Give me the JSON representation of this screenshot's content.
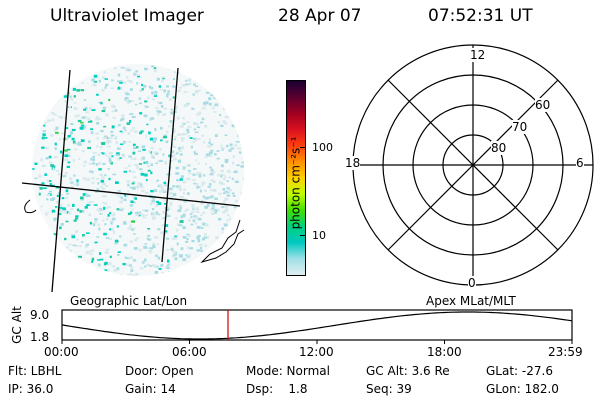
{
  "header": {
    "title": "Ultraviolet Imager",
    "date": "28 Apr 07",
    "time": "07:52:31 UT"
  },
  "colorbar": {
    "unit_label": "photon cm⁻²s⁻¹",
    "tick_labels": [
      "100",
      "10"
    ],
    "colors": [
      "#1a0033",
      "#5a0030",
      "#a00020",
      "#d81020",
      "#ff4010",
      "#ff9000",
      "#ffd000",
      "#c0ff00",
      "#40e000",
      "#00d080",
      "#00c8c0",
      "#a0e0e8",
      "#e0eef0"
    ]
  },
  "polar_plot": {
    "labels": {
      "top": "12",
      "left": "18",
      "right": "6",
      "bottom": "0"
    },
    "rings": [
      "60",
      "70",
      "80"
    ]
  },
  "timeline": {
    "y_axis_label": "GC Alt",
    "y_ticks": [
      "9.0",
      "1.8"
    ],
    "left_title": "Geographic Lat/Lon",
    "right_title": "Apex MLat/MLT",
    "x_ticks": [
      "00:00",
      "06:00",
      "12:00",
      "18:00",
      "23:59"
    ],
    "marker_color": "#cc0000"
  },
  "info": {
    "flt": "Flt: LBHL",
    "ip": "IP: 36.0",
    "door": "Door: Open",
    "gain": "Gain: 14",
    "mode": "Mode: Normal",
    "dsp": "Dsp:    1.8",
    "gcalt": "GC Alt: 3.6 Re",
    "seq": "Seq: 39",
    "glat": "GLat: -27.6",
    "glon": "GLon: 182.0"
  }
}
